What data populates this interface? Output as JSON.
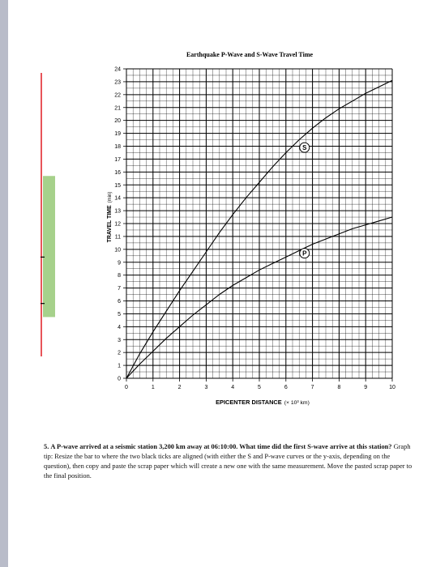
{
  "colors": {
    "red_rule": "#e01b24",
    "green_bar": "#a6d18b",
    "grid": "#000000",
    "curve": "#000000",
    "page_bg": "#b9bcc9"
  },
  "chart_data": {
    "type": "line",
    "title": "Earthquake P-Wave and S-Wave Travel Time",
    "xlabel": "EPICENTER DISTANCE",
    "xlabel_unit": "(× 10³ km)",
    "ylabel": "TRAVEL TIME",
    "ylabel_unit": "(min)",
    "xlim": [
      0,
      10
    ],
    "ylim": [
      0,
      24
    ],
    "x_ticks": [
      "0",
      "1",
      "2",
      "3",
      "4",
      "5",
      "6",
      "7",
      "8",
      "9",
      "10"
    ],
    "y_ticks": [
      "0",
      "1",
      "2",
      "3",
      "4",
      "5",
      "6",
      "7",
      "8",
      "9",
      "10",
      "11",
      "12",
      "13",
      "14",
      "15",
      "16",
      "17",
      "18",
      "19",
      "20",
      "21",
      "22",
      "23",
      "24"
    ],
    "grid": true,
    "series": [
      {
        "name": "S",
        "x": [
          0,
          0.5,
          1,
          1.5,
          2,
          2.5,
          3,
          3.5,
          4,
          4.5,
          5,
          5.5,
          6,
          6.5,
          7,
          7.5,
          8,
          8.5,
          9,
          9.5,
          10
        ],
        "values": [
          0,
          1.9,
          3.6,
          5.2,
          6.8,
          8.3,
          9.8,
          11.3,
          12.7,
          14.0,
          15.2,
          16.4,
          17.5,
          18.5,
          19.4,
          20.2,
          20.9,
          21.5,
          22.1,
          22.6,
          23.1
        ]
      },
      {
        "name": "P",
        "x": [
          0,
          0.5,
          1,
          1.5,
          2,
          2.5,
          3,
          3.5,
          4,
          4.5,
          5,
          5.5,
          6,
          6.5,
          7,
          7.5,
          8,
          8.5,
          9,
          9.5,
          10
        ],
        "values": [
          0,
          1.1,
          2.1,
          3.1,
          4.0,
          4.9,
          5.7,
          6.5,
          7.2,
          7.8,
          8.4,
          8.9,
          9.4,
          9.9,
          10.4,
          10.8,
          11.2,
          11.6,
          11.9,
          12.2,
          12.5
        ]
      }
    ],
    "curve_label_positions": [
      {
        "name": "S",
        "x": 6.7,
        "y": 17.9
      },
      {
        "name": "P",
        "x": 6.7,
        "y": 9.7
      }
    ]
  },
  "scrap_bar": {
    "range_min": [
      5,
      15
    ],
    "ticks_min": [
      5.8,
      9.4
    ]
  },
  "question": {
    "number": "5.",
    "bold": "A P-wave arrived at a seismic station 3,200 km away at 06:10:00. What time did the first S-wave arrive at this station?",
    "text": "Graph tip: Resize the bar to where the two black ticks are aligned (with either the S and P-wave curves or the y-axis, depending on the question), then copy and paste the scrap paper which will create a new one with the same measurement. Move the pasted scrap paper to the final position."
  }
}
